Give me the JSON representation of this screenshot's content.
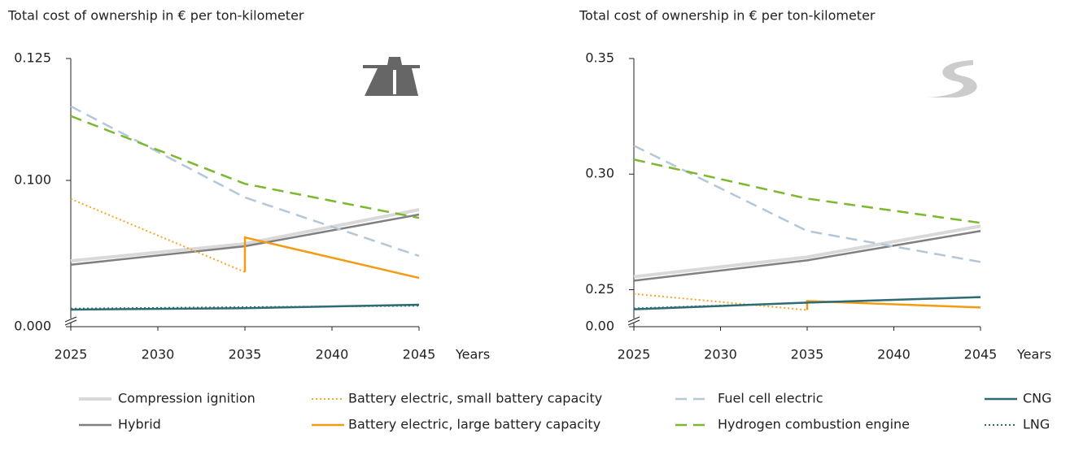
{
  "chart_data": [
    {
      "type": "line",
      "title": "Total cost of ownership in € per ton-kilometer",
      "x_label": "Years",
      "xlim": [
        2025,
        2045
      ],
      "xticks": [
        2025,
        2030,
        2035,
        2040,
        2045
      ],
      "ylim": [
        0.07,
        0.125
      ],
      "axis_break": true,
      "yticks": [
        {
          "value": 0,
          "label": "0.000"
        },
        {
          "value": 0.1,
          "label": "0.100"
        },
        0.125
      ],
      "series": [
        {
          "name": "Compression ignition",
          "color": "#d9d9d9",
          "style": "solid",
          "x": [
            2025,
            2035,
            2045
          ],
          "values": [
            0.0835,
            0.087,
            0.094
          ]
        },
        {
          "name": "Hybrid",
          "color": "#808080",
          "style": "solid",
          "x": [
            2025,
            2035,
            2045
          ],
          "values": [
            0.0827,
            0.0865,
            0.093
          ]
        },
        {
          "name": "Battery electric, small battery capacity",
          "color": "#f5a623",
          "style": "dotted",
          "x": [
            2025,
            2035
          ],
          "values": [
            0.0962,
            0.0812
          ]
        },
        {
          "name": "Battery electric, large battery capacity",
          "color": "#f39c12",
          "style": "solid",
          "x": [
            2035,
            2035,
            2045
          ],
          "values": [
            0.0812,
            0.0883,
            0.08
          ]
        },
        {
          "name": "Fuel cell electric",
          "color": "#b4c7d6",
          "style": "dashed",
          "x": [
            2025,
            2035,
            2045
          ],
          "values": [
            0.1152,
            0.0965,
            0.0845
          ]
        },
        {
          "name": "Hydrogen combustion engine",
          "color": "#7cb82f",
          "style": "dashed",
          "x": [
            2025,
            2035,
            2045
          ],
          "values": [
            0.1132,
            0.0993,
            0.0923
          ]
        },
        {
          "name": "CNG",
          "color": "#2e6b73",
          "style": "solid",
          "x": [
            2025,
            2035,
            2045
          ],
          "values": [
            0.0735,
            0.0738,
            0.0745
          ]
        },
        {
          "name": "LNG",
          "color": "#2e6b73",
          "style": "dotted",
          "x": [
            2025,
            2045
          ],
          "values": [
            0.0737,
            0.0743
          ]
        }
      ]
    },
    {
      "type": "line",
      "title": "Total cost of ownership in € per ton-kilometer",
      "x_label": "Years",
      "xlim": [
        2025,
        2045
      ],
      "xticks": [
        2025,
        2030,
        2035,
        2040,
        2045
      ],
      "ylim": [
        0.234,
        0.35
      ],
      "axis_break": true,
      "yticks": [
        {
          "value": 0,
          "label": "0.00"
        },
        0.25,
        {
          "value": 0.3,
          "label": "0.30"
        },
        0.35
      ],
      "series": [
        {
          "color": "#d9d9d9",
          "style": "solid",
          "x": [
            2025,
            2035,
            2045
          ],
          "values": [
            0.2556,
            0.2641,
            0.2775
          ]
        },
        {
          "color": "#808080",
          "style": "solid",
          "x": [
            2025,
            2035,
            2045
          ],
          "values": [
            0.2539,
            0.2627,
            0.2754
          ]
        },
        {
          "color": "#f5a623",
          "style": "dotted",
          "x": [
            2025,
            2035
          ],
          "values": [
            0.2482,
            0.2412
          ]
        },
        {
          "color": "#f39c12",
          "style": "solid",
          "x": [
            2035,
            2035,
            2045
          ],
          "values": [
            0.2412,
            0.2451,
            0.2423
          ]
        },
        {
          "color": "#b4c7d6",
          "style": "dashed",
          "x": [
            2025,
            2035,
            2045
          ],
          "values": [
            0.3123,
            0.2754,
            0.262
          ]
        },
        {
          "color": "#7cb82f",
          "style": "dashed",
          "x": [
            2025,
            2035,
            2045
          ],
          "values": [
            0.3063,
            0.2894,
            0.2789
          ]
        },
        {
          "color": "#2e6b73",
          "style": "solid",
          "x": [
            2025,
            2035,
            2045
          ],
          "values": [
            0.2415,
            0.2444,
            0.2468
          ]
        },
        {
          "color": "#2e6b73",
          "style": "dotted",
          "x": [
            2025,
            2045
          ],
          "values": [
            0.2419,
            0.2468
          ]
        }
      ]
    }
  ]
}
